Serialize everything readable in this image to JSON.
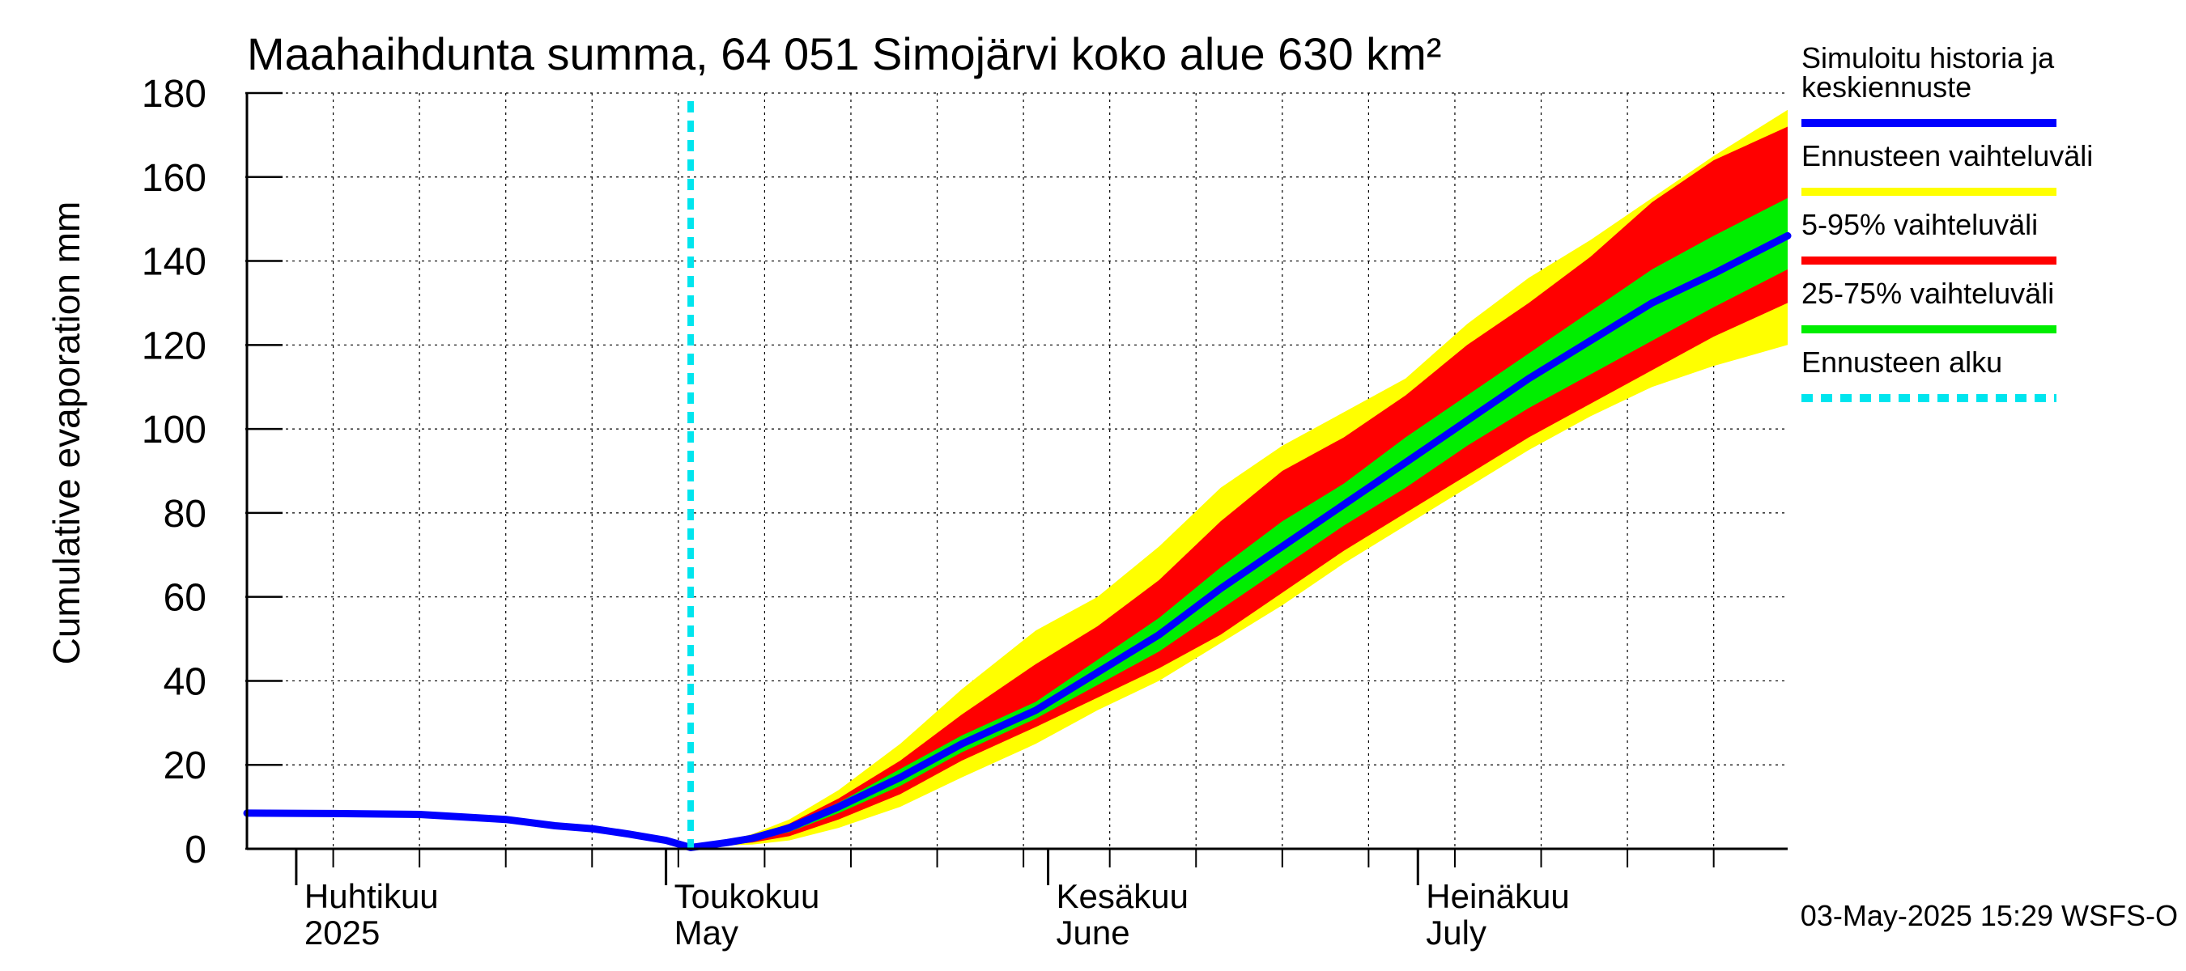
{
  "chart_data": {
    "type": "area",
    "title": "Maahaihdunta summa, 64 051 Simojärvi koko alue 630 km²",
    "ylabel": "Cumulative evaporation   mm",
    "ylim": [
      0,
      180
    ],
    "yticks": [
      0,
      20,
      40,
      60,
      80,
      100,
      120,
      140,
      160,
      180
    ],
    "xlim": [
      "2025-03-28",
      "2025-07-31"
    ],
    "grid": true,
    "months": [
      {
        "line1": "Huhtikuu",
        "line2": "2025",
        "date": "2025-04-01"
      },
      {
        "line1": "Toukokuu",
        "line2": "May",
        "date": "2025-05-01"
      },
      {
        "line1": "Kesäkuu",
        "line2": "June",
        "date": "2025-06-01"
      },
      {
        "line1": "Heinäkuu",
        "line2": "July",
        "date": "2025-07-01"
      }
    ],
    "forecast_start": "2025-05-03",
    "legend_position": "right",
    "legend": [
      {
        "label": "Simuloitu historia ja keskiennuste",
        "lines": [
          "Simuloitu historia ja",
          "keskiennuste"
        ],
        "color": "#0000ff",
        "style": "solid"
      },
      {
        "label": "Ennusteen vaihteluväli",
        "lines": [
          "Ennusteen vaihteluväli"
        ],
        "color": "#ffff00",
        "style": "solid"
      },
      {
        "label": "5-95% vaihteluväli",
        "lines": [
          "5-95% vaihteluväli"
        ],
        "color": "#ff0000",
        "style": "solid"
      },
      {
        "label": "25-75% vaihteluväli",
        "lines": [
          "25-75% vaihteluväli"
        ],
        "color": "#00ee00",
        "style": "solid"
      },
      {
        "label": "Ennusteen alku",
        "lines": [
          "Ennusteen alku"
        ],
        "color": "#00e5ee",
        "style": "dashed"
      }
    ],
    "series": [
      {
        "name": "Simuloitu historia ja keskiennuste",
        "x": [
          "2025-03-28",
          "2025-04-04",
          "2025-04-11",
          "2025-04-18",
          "2025-04-22",
          "2025-04-25",
          "2025-04-28",
          "2025-05-01",
          "2025-05-03",
          "2025-05-06",
          "2025-05-08",
          "2025-05-11",
          "2025-05-15",
          "2025-05-20",
          "2025-05-25",
          "2025-05-31",
          "2025-06-05",
          "2025-06-10",
          "2025-06-15",
          "2025-06-20",
          "2025-06-25",
          "2025-06-30",
          "2025-07-05",
          "2025-07-10",
          "2025-07-15",
          "2025-07-20",
          "2025-07-25",
          "2025-07-31"
        ],
        "y": [
          8.5,
          8.4,
          8.2,
          7,
          5.5,
          4.8,
          3.5,
          2,
          0.3,
          1.5,
          2.5,
          5,
          10,
          17,
          25,
          33,
          42,
          51,
          62,
          72,
          82,
          92,
          102,
          112,
          121,
          130,
          137,
          146
        ]
      },
      {
        "name": "Ennusteen vaihteluväli",
        "x": [
          "2025-05-03",
          "2025-05-06",
          "2025-05-08",
          "2025-05-11",
          "2025-05-15",
          "2025-05-20",
          "2025-05-25",
          "2025-05-31",
          "2025-06-05",
          "2025-06-10",
          "2025-06-15",
          "2025-06-20",
          "2025-06-25",
          "2025-06-30",
          "2025-07-05",
          "2025-07-10",
          "2025-07-15",
          "2025-07-20",
          "2025-07-25",
          "2025-07-31"
        ],
        "low": [
          0.3,
          0.8,
          1.0,
          2.0,
          5,
          10,
          17,
          25,
          33,
          40,
          49,
          58,
          68,
          77,
          86,
          95,
          103,
          110,
          115,
          120
        ],
        "high": [
          0.3,
          2.0,
          3.5,
          7,
          14,
          25,
          38,
          52,
          60,
          72,
          86,
          96,
          104,
          112,
          125,
          136,
          145,
          155,
          165,
          176
        ]
      },
      {
        "name": "5-95% vaihteluväli",
        "x": [
          "2025-05-03",
          "2025-05-06",
          "2025-05-08",
          "2025-05-11",
          "2025-05-15",
          "2025-05-20",
          "2025-05-25",
          "2025-05-31",
          "2025-06-05",
          "2025-06-10",
          "2025-06-15",
          "2025-06-20",
          "2025-06-25",
          "2025-06-30",
          "2025-07-05",
          "2025-07-10",
          "2025-07-15",
          "2025-07-20",
          "2025-07-25",
          "2025-07-31"
        ],
        "low": [
          0.3,
          1.0,
          1.5,
          3,
          7,
          13,
          21,
          29,
          36,
          43,
          51,
          61,
          71,
          80,
          89,
          98,
          106,
          114,
          122,
          130
        ],
        "high": [
          0.3,
          1.8,
          3.0,
          6,
          12,
          21,
          32,
          44,
          53,
          64,
          78,
          90,
          98,
          108,
          120,
          130,
          141,
          154,
          164,
          172
        ]
      },
      {
        "name": "25-75% vaihteluväli",
        "x": [
          "2025-05-03",
          "2025-05-06",
          "2025-05-08",
          "2025-05-11",
          "2025-05-15",
          "2025-05-20",
          "2025-05-25",
          "2025-05-31",
          "2025-06-05",
          "2025-06-10",
          "2025-06-15",
          "2025-06-20",
          "2025-06-25",
          "2025-06-30",
          "2025-07-05",
          "2025-07-10",
          "2025-07-15",
          "2025-07-20",
          "2025-07-25",
          "2025-07-31"
        ],
        "low": [
          0.3,
          1.3,
          2.0,
          4,
          8.5,
          15,
          23,
          31,
          39,
          47,
          57,
          67,
          77,
          86,
          96,
          105,
          113,
          121,
          129,
          138
        ],
        "high": [
          0.3,
          1.7,
          2.8,
          5.5,
          11,
          19,
          27,
          35,
          45,
          55,
          67,
          78,
          87,
          98,
          108,
          118,
          128,
          138,
          146,
          155
        ]
      }
    ]
  },
  "footer": "03-May-2025 15:29 WSFS-O",
  "colors": {
    "background": "#ffffff",
    "grid": "#000000",
    "median": "#0000ff",
    "range_full": "#ffff00",
    "range_5_95": "#ff0000",
    "range_25_75": "#00ee00",
    "forecast_start": "#00e5ee"
  }
}
